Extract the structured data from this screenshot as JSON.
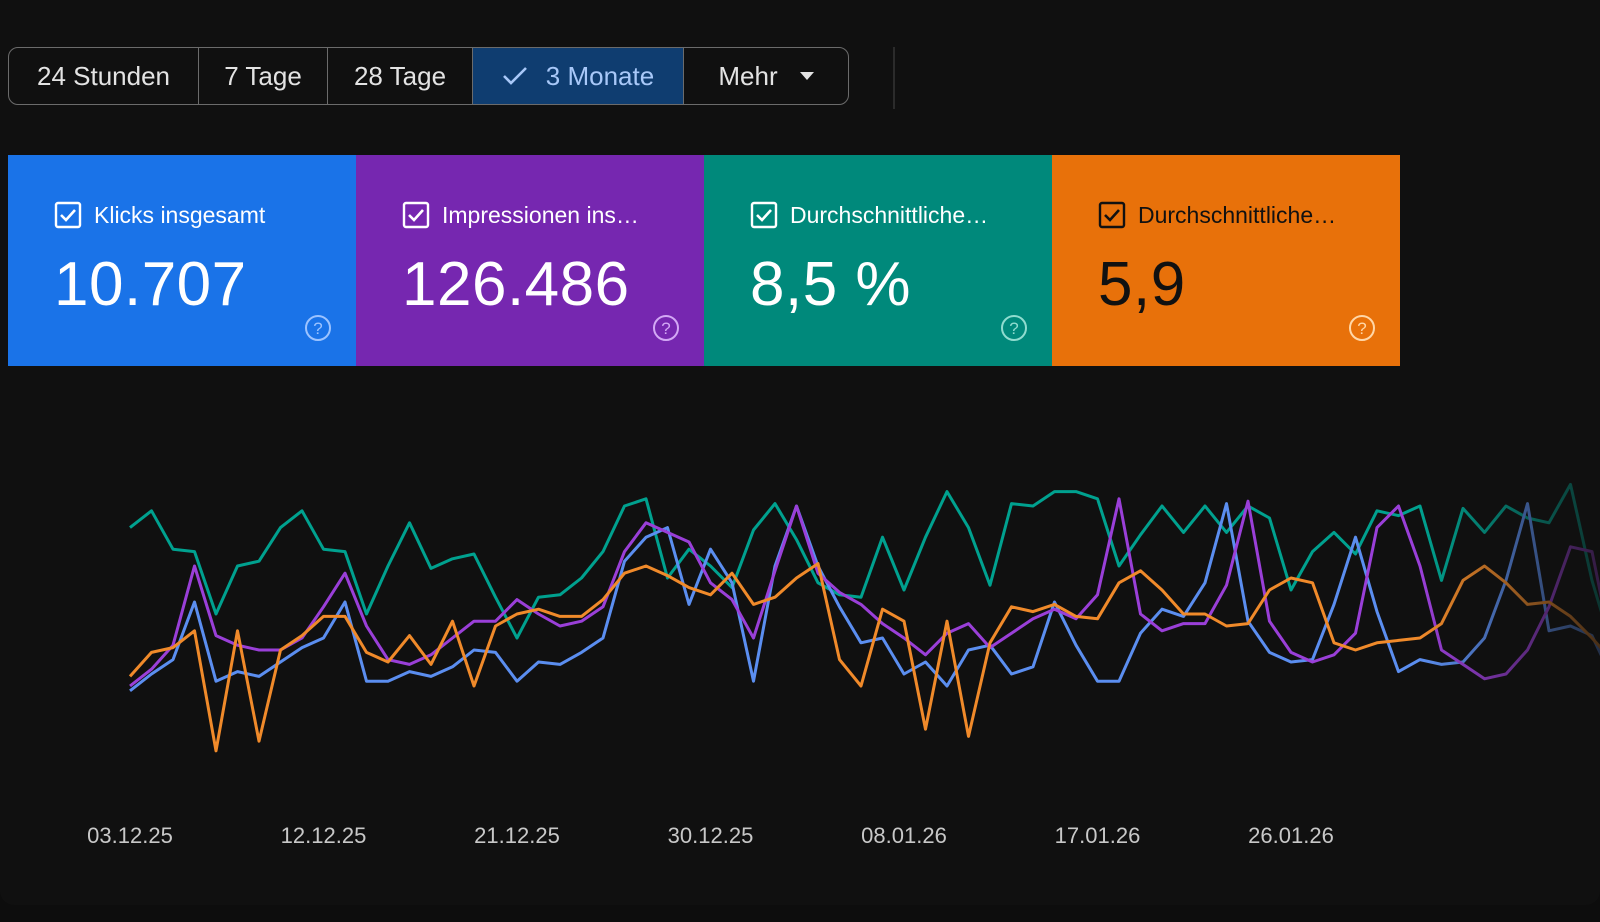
{
  "range_selector": {
    "options": [
      "24 Stunden",
      "7 Tage",
      "28 Tage",
      "3 Monate",
      "Mehr"
    ],
    "selected": "3 Monate"
  },
  "metrics": [
    {
      "label": "Klicks insgesamt",
      "value": "10.707",
      "color": "#1a73e8",
      "checked": true
    },
    {
      "label": "Impressionen ins…",
      "value": "126.486",
      "color": "#7627b0",
      "checked": true
    },
    {
      "label": "Durchschnittliche…",
      "value": "8,5 %",
      "color": "#00897b",
      "checked": true
    },
    {
      "label": "Durchschnittliche…",
      "value": "5,9",
      "color": "#e8710a",
      "checked": true
    }
  ],
  "chart_data": {
    "type": "line",
    "x_tick_labels": [
      "03.12.25",
      "12.12.25",
      "21.12.25",
      "30.12.25",
      "08.01.26",
      "17.01.26",
      "26.01.26"
    ],
    "ylim": [
      0,
      100
    ],
    "grid": false,
    "series": [
      {
        "color": "#00a18f",
        "values": [
          76,
          83,
          67,
          66,
          40,
          60,
          62,
          76,
          83,
          67,
          66,
          40,
          60,
          78,
          59,
          63,
          65,
          47,
          30,
          47,
          48,
          55,
          66,
          85,
          88,
          55,
          67,
          60,
          51,
          75,
          86,
          71,
          53,
          48,
          47,
          72,
          50,
          72,
          91,
          76,
          52,
          86,
          85,
          91,
          91,
          88,
          60,
          73,
          85,
          74,
          85,
          74,
          85,
          80,
          50,
          66,
          74,
          65,
          83,
          81,
          85,
          54,
          84,
          74,
          85,
          80,
          78,
          94,
          54,
          24
        ]
      },
      {
        "color": "#5b8ef0",
        "values": [
          8,
          15,
          21,
          45,
          12,
          16,
          14,
          20,
          26,
          30,
          45,
          12,
          12,
          16,
          14,
          18,
          25,
          24,
          12,
          20,
          19,
          24,
          30,
          62,
          72,
          76,
          44,
          67,
          53,
          12,
          60,
          85,
          60,
          43,
          28,
          30,
          15,
          20,
          10,
          25,
          27,
          15,
          18,
          45,
          27,
          12,
          12,
          32,
          42,
          39,
          53,
          86,
          37,
          24,
          20,
          21,
          44,
          72,
          41,
          16,
          21,
          19,
          20,
          30,
          54,
          86,
          33,
          35,
          31,
          12
        ]
      },
      {
        "color": "#9a3fd8",
        "values": [
          10,
          17,
          27,
          60,
          31,
          27,
          25,
          25,
          30,
          43,
          57,
          35,
          21,
          19,
          23,
          30,
          37,
          37,
          46,
          40,
          35,
          37,
          43,
          66,
          78,
          74,
          70,
          53,
          46,
          30,
          58,
          85,
          57,
          49,
          44,
          36,
          30,
          23,
          32,
          36,
          26,
          32,
          38,
          42,
          38,
          48,
          88,
          40,
          33,
          36,
          36,
          52,
          87,
          37,
          24,
          20,
          23,
          32,
          76,
          85,
          60,
          25,
          19,
          13,
          15,
          25,
          43,
          68,
          66,
          22
        ]
      },
      {
        "color": "#f08a2a",
        "values": [
          14,
          24,
          26,
          33,
          -17,
          33,
          -13,
          25,
          31,
          39,
          39,
          24,
          20,
          31,
          19,
          37,
          10,
          35,
          40,
          42,
          39,
          39,
          46,
          57,
          60,
          56,
          51,
          48,
          57,
          44,
          47,
          55,
          61,
          21,
          10,
          42,
          37,
          -8,
          37,
          -11,
          28,
          43,
          41,
          44,
          39,
          38,
          53,
          58,
          50,
          40,
          40,
          35,
          36,
          50,
          55,
          53,
          28,
          25,
          28,
          29,
          30,
          36,
          54,
          60,
          53,
          44,
          45,
          39,
          30,
          20
        ]
      }
    ]
  }
}
